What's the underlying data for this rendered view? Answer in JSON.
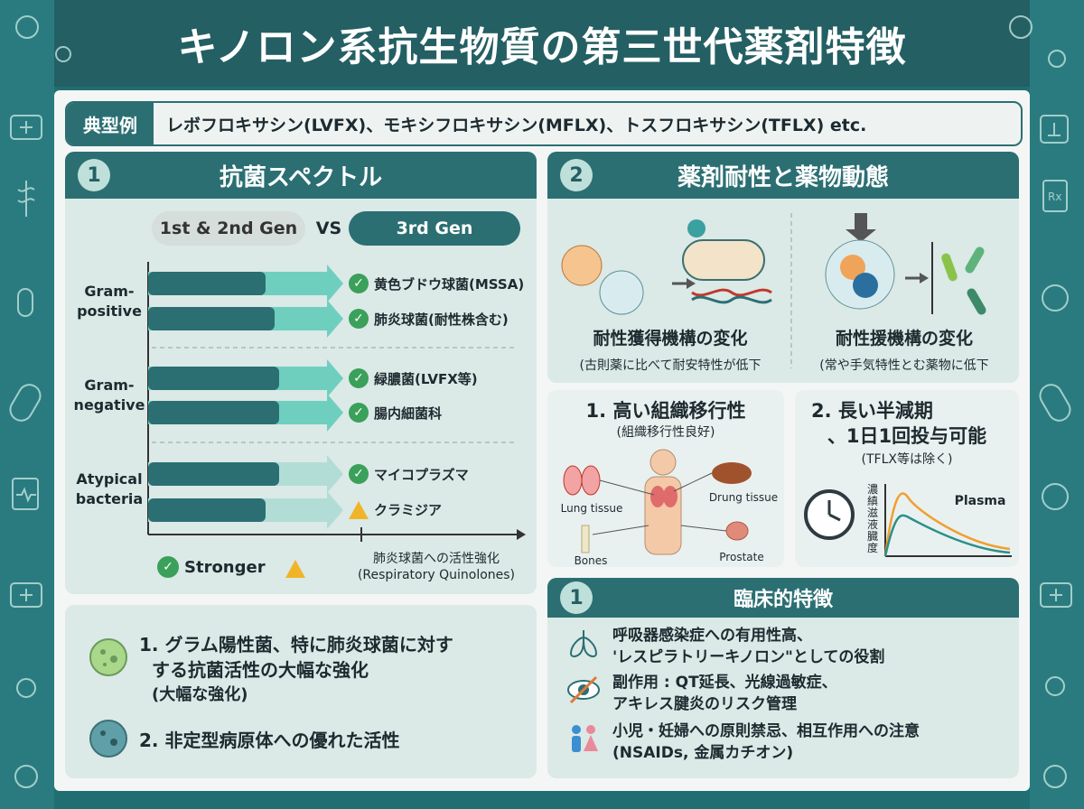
{
  "title": "キノロン系抗生物質の第三世代薬剤特徴",
  "example": {
    "tag": "典型例",
    "text": "レボフロキサシン(LVFX)、モキシフロキサシン(MFLX)、トスフロキサシン(TFLX) etc."
  },
  "spectrum": {
    "number": "1",
    "heading": "抗菌スペクトル",
    "gen_old": "1st & 2nd Gen",
    "vs": "VS",
    "gen_new": "3rd Gen",
    "groups": [
      {
        "label_1": "Gram-",
        "label_2": "positive",
        "items": [
          {
            "text": "黄色ブドウ球菌(MSSA)",
            "mark": "check"
          },
          {
            "text": "肺炎球菌(耐性株含む)",
            "mark": "check"
          }
        ]
      },
      {
        "label_1": "Gram-",
        "label_2": "negative",
        "items": [
          {
            "text": "緑膿菌(LVFX等)",
            "mark": "check"
          },
          {
            "text": "腸内細菌科",
            "mark": "check"
          }
        ]
      },
      {
        "label_1": "Atypical",
        "label_2": "bacteria",
        "items": [
          {
            "text": "マイコプラズマ",
            "mark": "check"
          },
          {
            "text": "クラミジア",
            "mark": "warning"
          }
        ]
      }
    ],
    "legend_stronger": "Stronger",
    "axis_note_1": "肺炎球菌への活性強化",
    "axis_note_2": "(Respiratory Quinolones)"
  },
  "summary": {
    "point1_l1": "1. グラム陽性菌、特に肺炎球菌に対す",
    "point1_l2": "する抗菌活性の大幅な強化",
    "point1_l3": "(大幅な強化)",
    "point2": "2. 非定型病原体への優れた活性"
  },
  "resistance": {
    "number": "2",
    "heading": "薬剤耐性と薬物動態",
    "left_title": "耐性獲得機構の変化",
    "left_note": "(古則薬に比べて耐安特性が低下",
    "right_title": "耐性援機構の変化",
    "right_note": "(常や手気特性とむ薬物に低下"
  },
  "tissue": {
    "title": "1. 高い組織移行性",
    "subtitle": "(組織移行性良好)",
    "labels": {
      "lung": "Lung tissue",
      "drug": "Drung tissue",
      "bones": "Bones",
      "prostate": "Prostate"
    }
  },
  "halflife": {
    "title_1": "2. 長い半減期",
    "title_2": "、1日1回投与可能",
    "subtitle": "(TFLX等は除く)",
    "ylabel": "濃縝滋液臓度",
    "series_label": "Plasma"
  },
  "clinical": {
    "number": "1",
    "heading": "臨床的特徴",
    "rows": [
      {
        "l1": "呼吸器感染症への有用性高、",
        "l2": "'レスピラトリーキノロン\"としての役割"
      },
      {
        "l1": "副作用 : QT延長、光線過敏症、",
        "l2": "アキレス腱炎のリスク管理"
      },
      {
        "l1": "小児・妊婦への原則禁忌、相互作用への注意",
        "l2": "(NSAIDs, 金属カチオン)"
      }
    ]
  },
  "colors": {
    "teal": "#2b6f73",
    "panel": "#dbe9e7",
    "check": "#3aa05a",
    "warning": "#f0b429"
  }
}
